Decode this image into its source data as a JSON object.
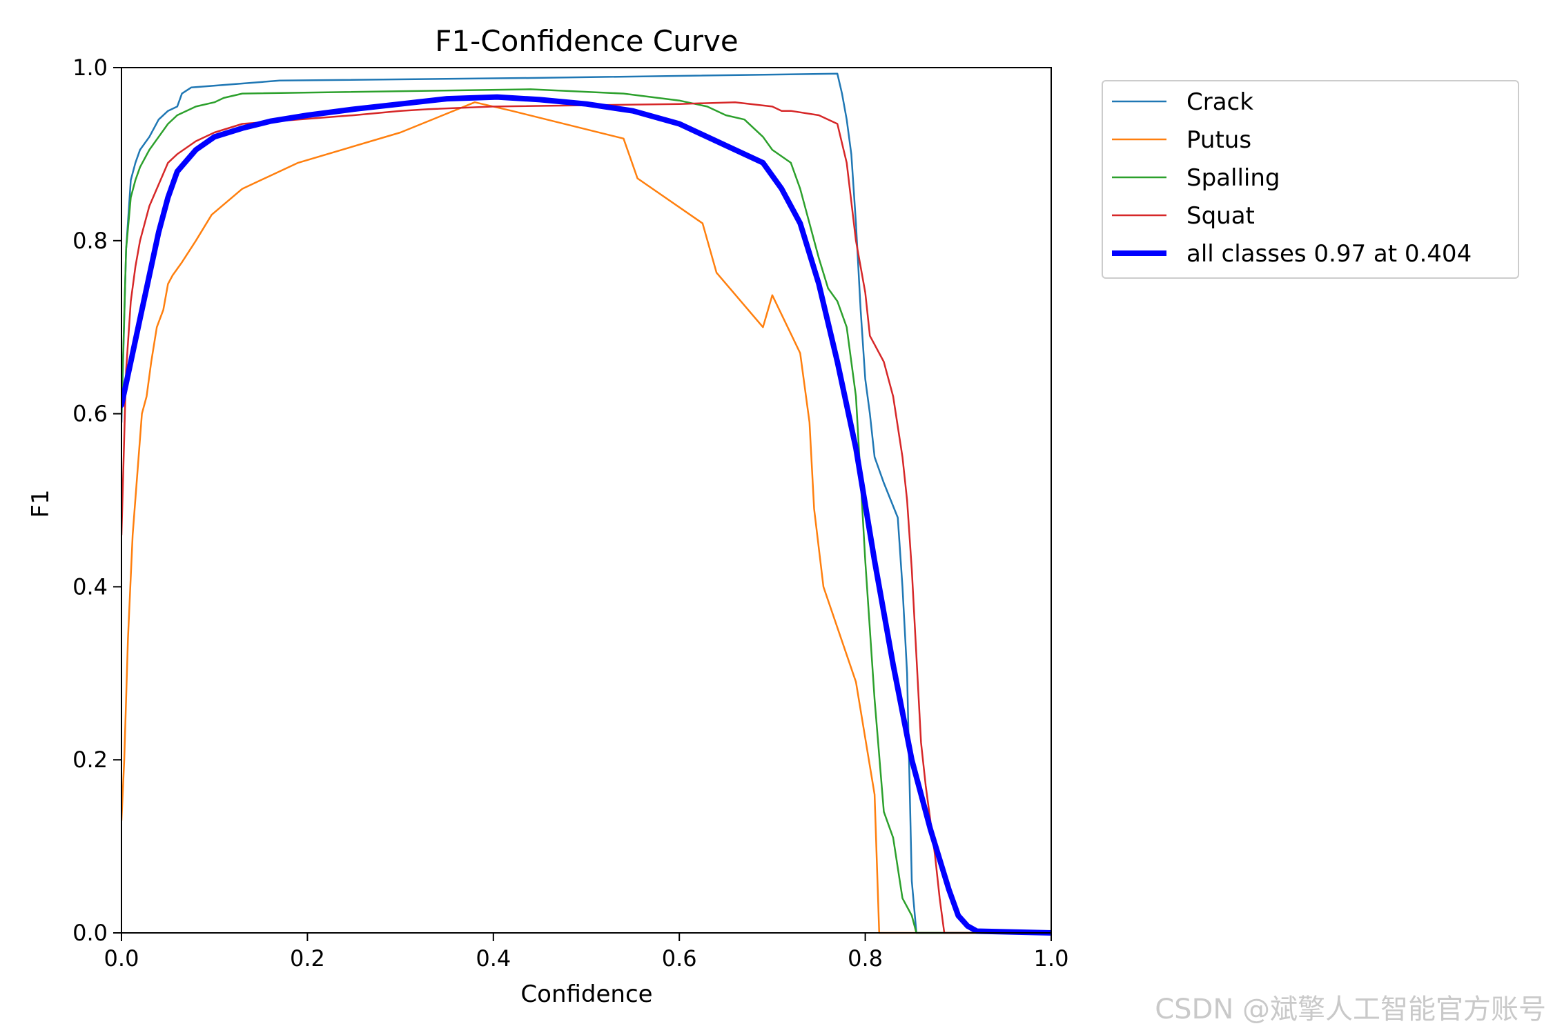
{
  "chart_data": {
    "type": "line",
    "title": "F1-Confidence Curve",
    "xlabel": "Confidence",
    "ylabel": "F1",
    "xlim": [
      0.0,
      1.0
    ],
    "ylim": [
      0.0,
      1.0
    ],
    "xticks": [
      "0.0",
      "0.2",
      "0.4",
      "0.6",
      "0.8",
      "1.0"
    ],
    "yticks": [
      "0.0",
      "0.2",
      "0.4",
      "0.6",
      "0.8",
      "1.0"
    ],
    "grid": false,
    "legend_position": "outside-top-right",
    "series": [
      {
        "name": "Crack",
        "color": "#1f77b4",
        "width": "thin",
        "x": [
          0.0,
          0.005,
          0.01,
          0.015,
          0.02,
          0.03,
          0.04,
          0.05,
          0.06,
          0.065,
          0.075,
          0.17,
          0.44,
          0.77,
          0.775,
          0.78,
          0.785,
          0.79,
          0.795,
          0.8,
          0.805,
          0.81,
          0.82,
          0.835,
          0.84,
          0.845,
          0.85,
          0.855,
          0.86,
          1.0
        ],
        "y": [
          0.59,
          0.79,
          0.87,
          0.89,
          0.905,
          0.92,
          0.94,
          0.95,
          0.955,
          0.97,
          0.977,
          0.985,
          0.988,
          0.993,
          0.97,
          0.94,
          0.9,
          0.82,
          0.72,
          0.64,
          0.6,
          0.55,
          0.52,
          0.48,
          0.4,
          0.3,
          0.06,
          0.0,
          0.0,
          0.0
        ]
      },
      {
        "name": "Putus",
        "color": "#ff7f0e",
        "width": "thin",
        "x": [
          0.0,
          0.003,
          0.007,
          0.012,
          0.017,
          0.022,
          0.027,
          0.032,
          0.038,
          0.045,
          0.05,
          0.055,
          0.065,
          0.08,
          0.097,
          0.13,
          0.19,
          0.3,
          0.38,
          0.42,
          0.54,
          0.555,
          0.625,
          0.64,
          0.69,
          0.7,
          0.73,
          0.74,
          0.745,
          0.755,
          0.79,
          0.81,
          0.815,
          0.816,
          0.82,
          1.0
        ],
        "y": [
          0.13,
          0.2,
          0.34,
          0.46,
          0.53,
          0.6,
          0.62,
          0.66,
          0.7,
          0.72,
          0.75,
          0.76,
          0.775,
          0.8,
          0.83,
          0.86,
          0.89,
          0.925,
          0.96,
          0.95,
          0.918,
          0.872,
          0.82,
          0.763,
          0.7,
          0.737,
          0.67,
          0.59,
          0.49,
          0.4,
          0.29,
          0.16,
          0.0,
          0.0,
          0.0,
          0.0
        ]
      },
      {
        "name": "Spalling",
        "color": "#2ca02c",
        "width": "thin",
        "x": [
          0.0,
          0.005,
          0.01,
          0.015,
          0.02,
          0.03,
          0.04,
          0.05,
          0.06,
          0.08,
          0.1,
          0.11,
          0.13,
          0.44,
          0.54,
          0.6,
          0.63,
          0.65,
          0.67,
          0.68,
          0.69,
          0.7,
          0.72,
          0.73,
          0.74,
          0.75,
          0.76,
          0.77,
          0.78,
          0.79,
          0.8,
          0.81,
          0.82,
          0.83,
          0.84,
          0.85,
          0.855,
          1.0
        ],
        "y": [
          0.6,
          0.79,
          0.85,
          0.87,
          0.885,
          0.905,
          0.92,
          0.935,
          0.945,
          0.955,
          0.96,
          0.965,
          0.97,
          0.975,
          0.97,
          0.962,
          0.955,
          0.945,
          0.94,
          0.93,
          0.92,
          0.905,
          0.89,
          0.86,
          0.82,
          0.78,
          0.745,
          0.73,
          0.7,
          0.62,
          0.43,
          0.27,
          0.14,
          0.11,
          0.04,
          0.02,
          0.0,
          0.0
        ]
      },
      {
        "name": "Squat",
        "color": "#d62728",
        "width": "thin",
        "x": [
          0.0,
          0.005,
          0.01,
          0.015,
          0.02,
          0.03,
          0.04,
          0.05,
          0.06,
          0.08,
          0.1,
          0.13,
          0.25,
          0.3,
          0.33,
          0.4,
          0.6,
          0.66,
          0.7,
          0.71,
          0.72,
          0.75,
          0.77,
          0.78,
          0.79,
          0.8,
          0.805,
          0.81,
          0.82,
          0.83,
          0.84,
          0.845,
          0.85,
          0.855,
          0.86,
          0.865,
          0.87,
          0.875,
          0.88,
          0.885,
          1.0
        ],
        "y": [
          0.46,
          0.65,
          0.73,
          0.77,
          0.8,
          0.84,
          0.865,
          0.89,
          0.9,
          0.915,
          0.925,
          0.935,
          0.945,
          0.95,
          0.952,
          0.955,
          0.958,
          0.96,
          0.955,
          0.95,
          0.95,
          0.945,
          0.935,
          0.89,
          0.8,
          0.74,
          0.69,
          0.68,
          0.66,
          0.62,
          0.55,
          0.5,
          0.42,
          0.32,
          0.22,
          0.17,
          0.13,
          0.09,
          0.04,
          0.0,
          0.0
        ]
      },
      {
        "name": "all classes 0.97 at 0.404",
        "color": "#0000ff",
        "width": "thick",
        "x": [
          0.0,
          0.01,
          0.02,
          0.03,
          0.04,
          0.05,
          0.06,
          0.08,
          0.1,
          0.13,
          0.16,
          0.2,
          0.25,
          0.3,
          0.35,
          0.404,
          0.45,
          0.5,
          0.55,
          0.6,
          0.65,
          0.69,
          0.71,
          0.73,
          0.75,
          0.77,
          0.79,
          0.81,
          0.83,
          0.85,
          0.87,
          0.89,
          0.9,
          0.91,
          0.92,
          1.0
        ],
        "y": [
          0.61,
          0.66,
          0.71,
          0.76,
          0.81,
          0.85,
          0.88,
          0.905,
          0.92,
          0.93,
          0.938,
          0.945,
          0.952,
          0.958,
          0.964,
          0.966,
          0.963,
          0.958,
          0.95,
          0.935,
          0.91,
          0.89,
          0.86,
          0.82,
          0.75,
          0.66,
          0.56,
          0.43,
          0.31,
          0.2,
          0.12,
          0.05,
          0.02,
          0.008,
          0.002,
          0.0
        ]
      }
    ]
  },
  "watermark": "CSDN @斌擎人工智能官方账号"
}
